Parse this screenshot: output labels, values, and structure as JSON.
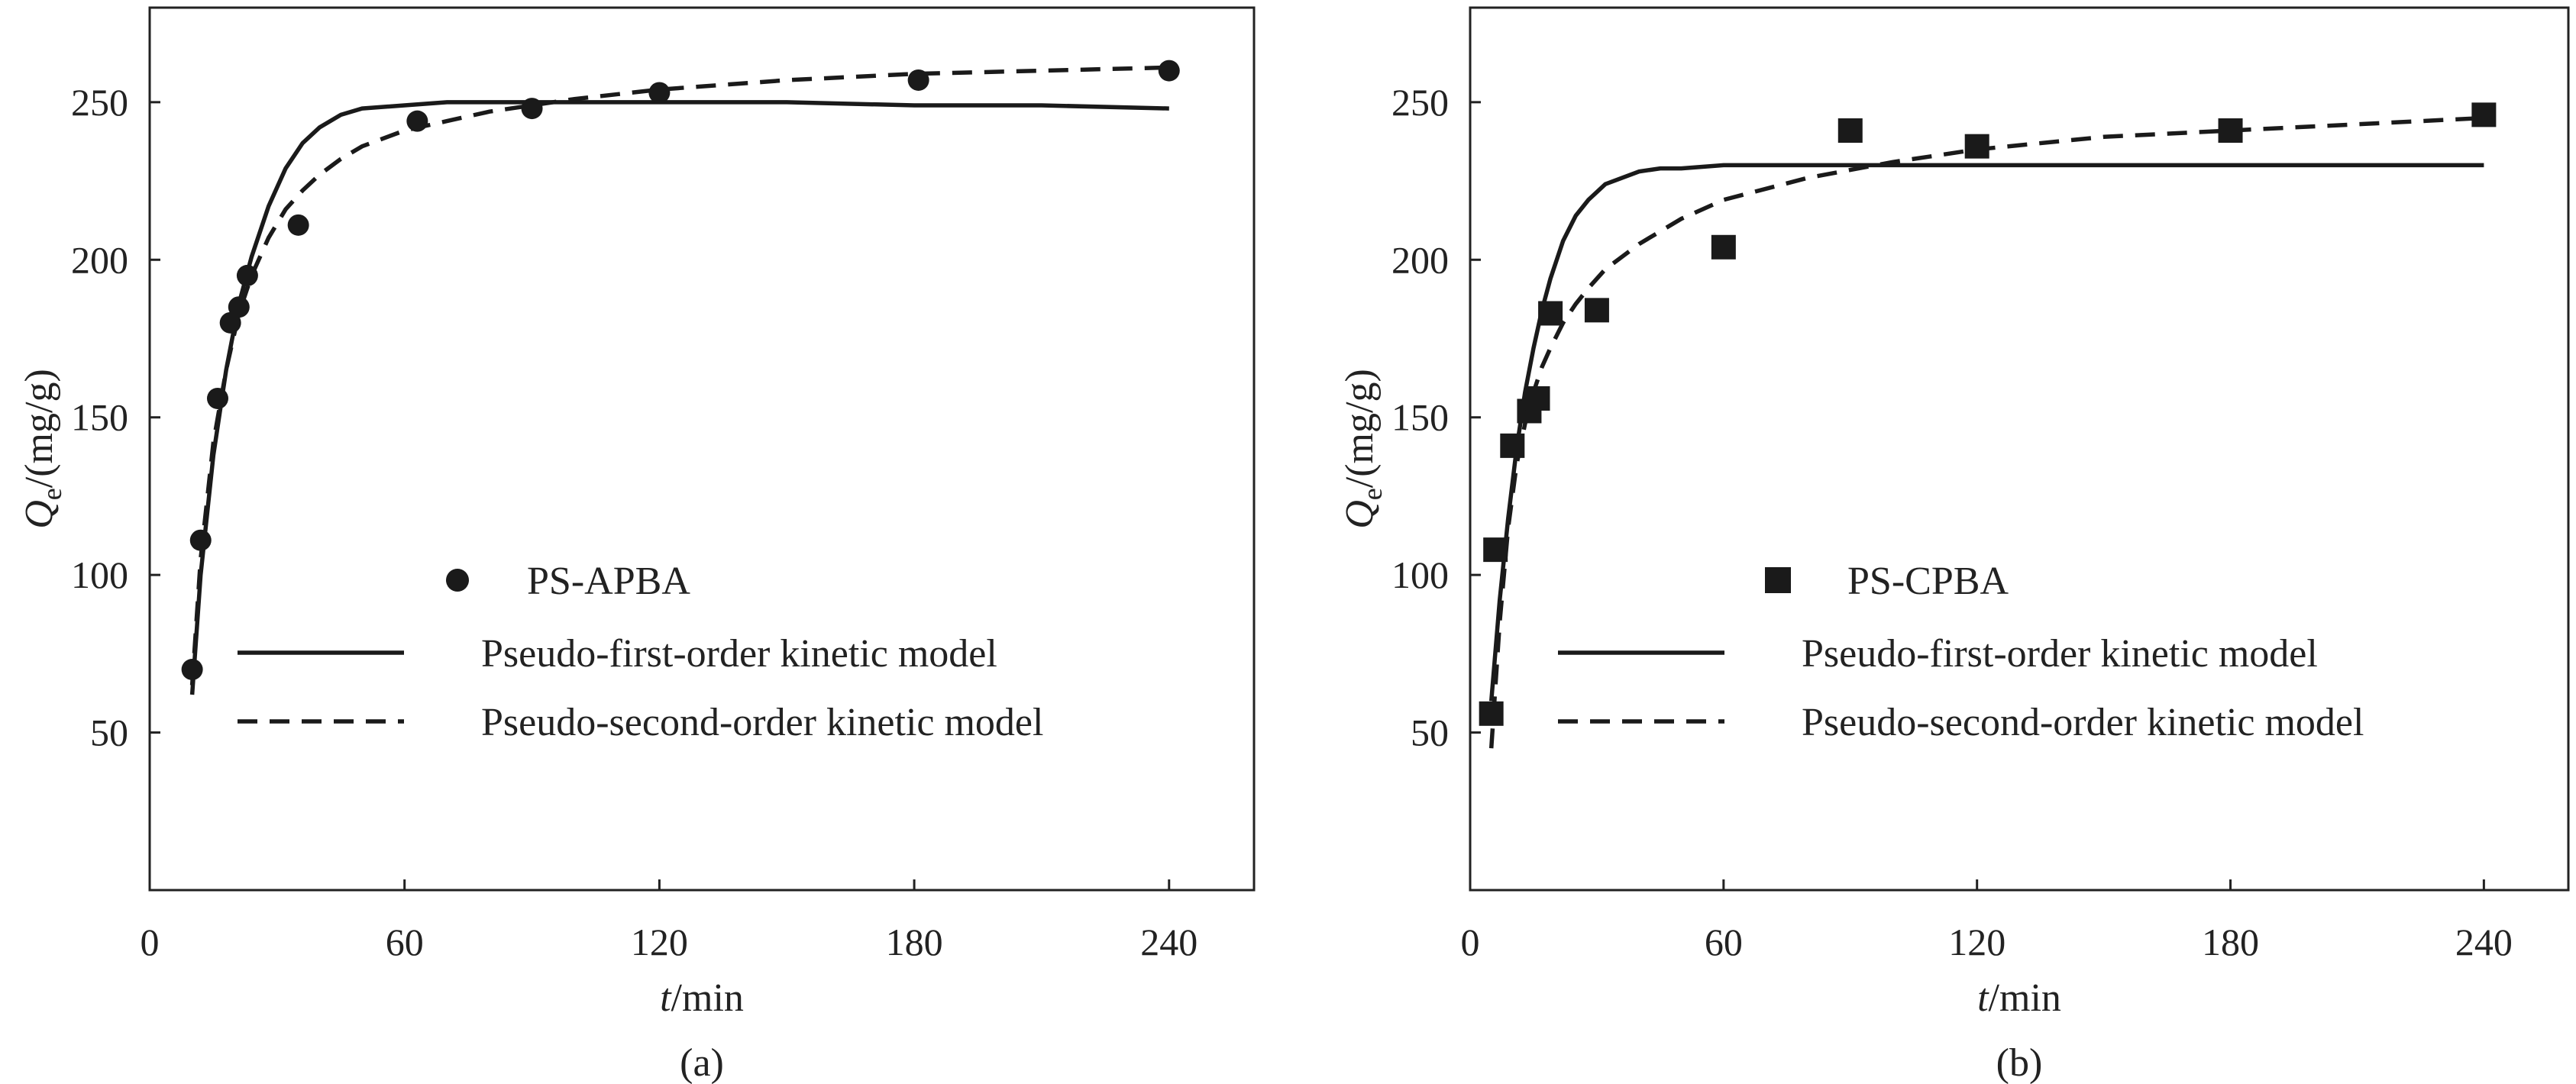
{
  "chart_data": [
    {
      "type": "scatter",
      "panel_label": "(a)",
      "xlabel_italic": "t",
      "xlabel_unit": "/min",
      "ylabel_main": "Q",
      "ylabel_sub": "e",
      "ylabel_unit": "/(mg/g)",
      "xlim": [
        0,
        260
      ],
      "ylim": [
        0,
        280
      ],
      "xticks": [
        0,
        60,
        120,
        180,
        240
      ],
      "yticks": [
        50,
        100,
        150,
        200,
        250
      ],
      "legend_position": "center-right",
      "marker": "circle",
      "points_label": "PS-APBA",
      "points": [
        {
          "x": 10,
          "y": 70
        },
        {
          "x": 12,
          "y": 111
        },
        {
          "x": 16,
          "y": 156
        },
        {
          "x": 19,
          "y": 180
        },
        {
          "x": 21,
          "y": 185
        },
        {
          "x": 23,
          "y": 195
        },
        {
          "x": 35,
          "y": 211
        },
        {
          "x": 63,
          "y": 244
        },
        {
          "x": 90,
          "y": 248
        },
        {
          "x": 120,
          "y": 253
        },
        {
          "x": 181,
          "y": 257
        },
        {
          "x": 240,
          "y": 260
        }
      ],
      "series": [
        {
          "name": "Pseudo-first-order kinetic model",
          "style": "solid",
          "x": [
            10,
            12,
            15,
            18,
            21,
            24,
            28,
            32,
            36,
            40,
            45,
            50,
            60,
            70,
            80,
            90,
            100,
            120,
            150,
            180,
            210,
            240
          ],
          "y": [
            62,
            100,
            138,
            165,
            186,
            201,
            217,
            229,
            237,
            242,
            246,
            248,
            249,
            250,
            250,
            250,
            250,
            250,
            250,
            249,
            249,
            248
          ]
        },
        {
          "name": "Pseudo-second-order kinetic model",
          "style": "dashed",
          "x": [
            10,
            12,
            15,
            18,
            21,
            24,
            28,
            32,
            36,
            40,
            45,
            50,
            60,
            70,
            80,
            90,
            100,
            120,
            150,
            180,
            210,
            240
          ],
          "y": [
            65,
            105,
            142,
            165,
            183,
            195,
            207,
            216,
            222,
            227,
            232,
            236,
            241,
            244,
            247,
            249,
            251,
            254,
            257,
            259,
            260,
            261
          ]
        }
      ]
    },
    {
      "type": "scatter",
      "panel_label": "(b)",
      "xlabel_italic": "t",
      "xlabel_unit": "/min",
      "ylabel_main": "Q",
      "ylabel_sub": "e",
      "ylabel_unit": "/(mg/g)",
      "xlim": [
        0,
        260
      ],
      "ylim": [
        0,
        280
      ],
      "xticks": [
        0,
        60,
        120,
        180,
        240
      ],
      "yticks": [
        50,
        100,
        150,
        200,
        250
      ],
      "legend_position": "center-right",
      "marker": "square",
      "points_label": "PS-CPBA",
      "points": [
        {
          "x": 5,
          "y": 56
        },
        {
          "x": 6,
          "y": 108
        },
        {
          "x": 10,
          "y": 141
        },
        {
          "x": 14,
          "y": 152
        },
        {
          "x": 16,
          "y": 156
        },
        {
          "x": 19,
          "y": 183
        },
        {
          "x": 30,
          "y": 184
        },
        {
          "x": 60,
          "y": 204
        },
        {
          "x": 90,
          "y": 241
        },
        {
          "x": 120,
          "y": 236
        },
        {
          "x": 180,
          "y": 241
        },
        {
          "x": 240,
          "y": 246
        }
      ],
      "series": [
        {
          "name": "Pseudo-first-order kinetic model",
          "style": "solid",
          "x": [
            5,
            7,
            9,
            11,
            13,
            15,
            17,
            19,
            22,
            25,
            28,
            32,
            36,
            40,
            45,
            50,
            60,
            80,
            100,
            120,
            150,
            180,
            210,
            240
          ],
          "y": [
            60,
            92,
            118,
            140,
            158,
            172,
            184,
            194,
            206,
            214,
            219,
            224,
            226,
            228,
            229,
            229,
            230,
            230,
            230,
            230,
            230,
            230,
            230,
            230
          ]
        },
        {
          "name": "Pseudo-second-order kinetic model",
          "style": "dashed",
          "x": [
            5,
            7,
            9,
            11,
            13,
            15,
            17,
            19,
            22,
            25,
            28,
            32,
            36,
            40,
            45,
            50,
            60,
            80,
            100,
            120,
            150,
            180,
            210,
            240
          ],
          "y": [
            45,
            85,
            115,
            135,
            148,
            158,
            166,
            172,
            180,
            186,
            191,
            197,
            201,
            205,
            209,
            213,
            219,
            226,
            231,
            235,
            239,
            241,
            243,
            245
          ]
        }
      ]
    }
  ]
}
